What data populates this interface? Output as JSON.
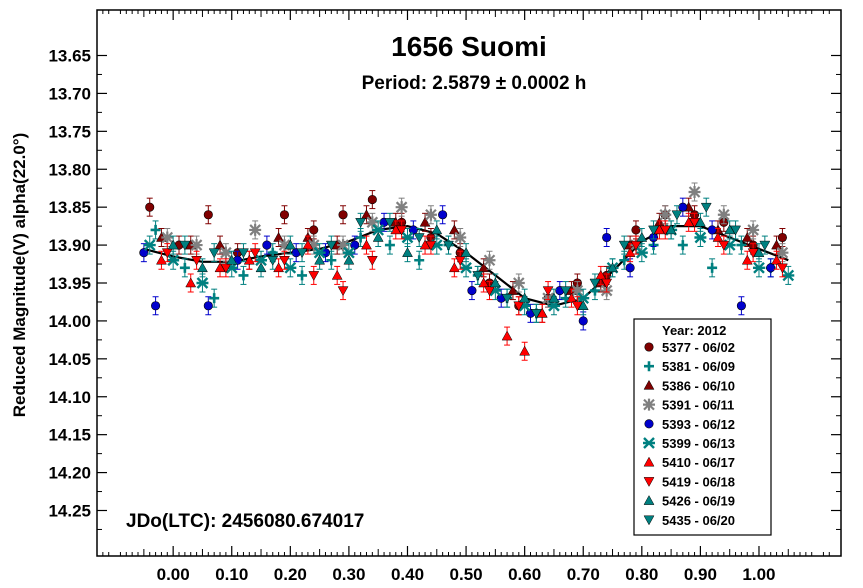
{
  "chart_data": {
    "type": "scatter",
    "title": "1656 Suomi",
    "subtitle": "Period: 2.5879 ± 0.0002 h",
    "xlabel": "",
    "ylabel": "Reduced Magnitude(V) alpha(22.0°)",
    "xlim": [
      -0.13,
      1.14
    ],
    "ylim": [
      14.31,
      13.59
    ],
    "y_inverted": true,
    "x_ticks": [
      0.0,
      0.1,
      0.2,
      0.3,
      0.4,
      0.5,
      0.6,
      0.7,
      0.8,
      0.9,
      1.0
    ],
    "x_tick_labels": [
      "0.00",
      "0.10",
      "0.20",
      "0.30",
      "0.40",
      "0.50",
      "0.60",
      "0.70",
      "0.80",
      "0.90",
      "1.00"
    ],
    "y_ticks": [
      13.65,
      13.7,
      13.75,
      13.8,
      13.85,
      13.9,
      13.95,
      14.0,
      14.05,
      14.1,
      14.15,
      14.2,
      14.25
    ],
    "y_tick_labels": [
      "13.65",
      "13.70",
      "13.75",
      "13.80",
      "13.85",
      "13.90",
      "13.95",
      "14.00",
      "14.05",
      "14.10",
      "14.15",
      "14.20",
      "14.25"
    ],
    "annotation": "JDo(LTC): 2456080.674017",
    "legend_title": "Year: 2012",
    "legend_position": "bottom-right",
    "fit_curve": {
      "x": [
        -0.05,
        0.0,
        0.05,
        0.1,
        0.15,
        0.2,
        0.25,
        0.3,
        0.35,
        0.4,
        0.45,
        0.5,
        0.55,
        0.6,
        0.65,
        0.7,
        0.75,
        0.8,
        0.85,
        0.9,
        0.95,
        1.0,
        1.05
      ],
      "y": [
        13.905,
        13.915,
        13.922,
        13.922,
        13.915,
        13.91,
        13.905,
        13.895,
        13.88,
        13.875,
        13.885,
        13.91,
        13.94,
        13.97,
        13.98,
        13.97,
        13.935,
        13.895,
        13.875,
        13.875,
        13.89,
        13.905,
        13.92
      ]
    },
    "series": [
      {
        "name": "5377 - 06/02",
        "marker": "circle",
        "color": "#800000",
        "x": [
          -0.04,
          0.01,
          0.06,
          0.11,
          0.19,
          0.24,
          0.29,
          0.34,
          0.39,
          0.44,
          0.49,
          0.54,
          0.59,
          0.64,
          0.69,
          0.74,
          0.79,
          0.84,
          0.89,
          0.94,
          0.99,
          1.04
        ],
        "y": [
          13.85,
          13.9,
          13.86,
          13.91,
          13.86,
          13.88,
          13.86,
          13.84,
          13.87,
          13.89,
          13.91,
          13.95,
          13.98,
          13.97,
          13.95,
          13.94,
          13.88,
          13.86,
          13.86,
          13.87,
          13.9,
          13.89
        ]
      },
      {
        "name": "5381 - 06/09",
        "marker": "plus",
        "color": "#008080",
        "x": [
          -0.03,
          0.02,
          0.07,
          0.12,
          0.17,
          0.22,
          0.27,
          0.32,
          0.37,
          0.42,
          0.47,
          0.52,
          0.57,
          0.62,
          0.67,
          0.72,
          0.77,
          0.82,
          0.87,
          0.92,
          0.97,
          1.02
        ],
        "y": [
          13.88,
          13.93,
          13.97,
          13.94,
          13.91,
          13.94,
          13.92,
          13.89,
          13.9,
          13.92,
          13.9,
          13.94,
          13.97,
          13.99,
          13.97,
          13.96,
          13.92,
          13.9,
          13.9,
          13.93,
          13.9,
          13.93
        ]
      },
      {
        "name": "5386 - 06/10",
        "marker": "triangle-up",
        "color": "#800000",
        "x": [
          -0.02,
          0.03,
          0.08,
          0.13,
          0.18,
          0.23,
          0.28,
          0.33,
          0.38,
          0.43,
          0.48,
          0.53,
          0.58,
          0.63,
          0.68,
          0.73,
          0.78,
          0.83,
          0.88,
          0.93,
          0.98,
          1.03
        ],
        "y": [
          13.89,
          13.9,
          13.9,
          13.92,
          13.89,
          13.89,
          13.9,
          13.86,
          13.87,
          13.87,
          13.88,
          13.93,
          13.96,
          13.99,
          13.96,
          13.95,
          13.9,
          13.87,
          13.85,
          13.88,
          13.89,
          13.9
        ]
      },
      {
        "name": "5391 - 06/11",
        "marker": "asterisk",
        "color": "#808080",
        "x": [
          -0.01,
          0.04,
          0.09,
          0.14,
          0.19,
          0.24,
          0.29,
          0.34,
          0.39,
          0.44,
          0.49,
          0.54,
          0.59,
          0.64,
          0.69,
          0.74,
          0.79,
          0.84,
          0.89,
          0.94,
          0.99,
          1.04
        ],
        "y": [
          13.89,
          13.9,
          13.91,
          13.88,
          13.9,
          13.9,
          13.9,
          13.87,
          13.85,
          13.86,
          13.89,
          13.92,
          13.95,
          13.97,
          13.96,
          13.96,
          13.9,
          13.86,
          13.83,
          13.86,
          13.88,
          13.91
        ]
      },
      {
        "name": "5393 - 06/12",
        "marker": "circle",
        "color": "#0000cc",
        "x": [
          -0.05,
          -0.03,
          0.06,
          0.11,
          0.16,
          0.21,
          0.26,
          0.31,
          0.36,
          0.41,
          0.46,
          0.51,
          0.56,
          0.61,
          0.66,
          0.7,
          0.74,
          0.78,
          0.82,
          0.87,
          0.92,
          0.97,
          1.02
        ],
        "y": [
          13.91,
          13.98,
          13.98,
          13.92,
          13.9,
          13.91,
          13.91,
          13.9,
          13.87,
          13.88,
          13.86,
          13.96,
          13.97,
          13.99,
          13.96,
          14.0,
          13.89,
          13.93,
          13.89,
          13.85,
          13.88,
          13.98,
          13.93
        ]
      },
      {
        "name": "5399 - 06/13",
        "marker": "cross",
        "color": "#008080",
        "x": [
          -0.04,
          0.0,
          0.05,
          0.1,
          0.15,
          0.2,
          0.25,
          0.3,
          0.35,
          0.4,
          0.45,
          0.5,
          0.55,
          0.6,
          0.65,
          0.7,
          0.75,
          0.8,
          0.85,
          0.9,
          0.95,
          1.0,
          1.05
        ],
        "y": [
          13.9,
          13.92,
          13.95,
          13.93,
          13.92,
          13.93,
          13.91,
          13.91,
          13.88,
          13.89,
          13.9,
          13.93,
          13.96,
          13.98,
          13.98,
          13.97,
          13.93,
          13.91,
          13.88,
          13.89,
          13.9,
          13.93,
          13.94
        ]
      },
      {
        "name": "5410 - 06/17",
        "marker": "triangle-up",
        "color": "#ff0000",
        "x": [
          -0.02,
          0.03,
          0.08,
          0.13,
          0.18,
          0.23,
          0.28,
          0.33,
          0.38,
          0.43,
          0.48,
          0.53,
          0.57,
          0.6,
          0.63,
          0.68,
          0.73,
          0.78,
          0.83,
          0.88,
          0.93,
          0.98,
          1.03
        ],
        "y": [
          13.92,
          13.95,
          13.93,
          13.92,
          13.93,
          13.9,
          13.94,
          13.9,
          13.88,
          13.9,
          13.93,
          13.95,
          14.02,
          14.04,
          13.99,
          13.97,
          13.94,
          13.91,
          13.88,
          13.87,
          13.89,
          13.92,
          13.92
        ]
      },
      {
        "name": "5419 - 06/18",
        "marker": "triangle-down",
        "color": "#ff0000",
        "x": [
          -0.01,
          0.04,
          0.09,
          0.14,
          0.19,
          0.24,
          0.29,
          0.34,
          0.39,
          0.44,
          0.49,
          0.54,
          0.59,
          0.64,
          0.69,
          0.74,
          0.79,
          0.84,
          0.89,
          0.94,
          0.99,
          1.04
        ],
        "y": [
          13.91,
          13.92,
          13.93,
          13.91,
          13.92,
          13.94,
          13.96,
          13.92,
          13.88,
          13.9,
          13.92,
          13.96,
          13.98,
          13.96,
          13.98,
          13.95,
          13.9,
          13.88,
          13.87,
          13.9,
          13.91,
          13.93
        ]
      },
      {
        "name": "5426 - 06/19",
        "marker": "triangle-up",
        "color": "#008080",
        "x": [
          0.0,
          0.05,
          0.1,
          0.15,
          0.2,
          0.25,
          0.3,
          0.35,
          0.4,
          0.45,
          0.5,
          0.55,
          0.6,
          0.65,
          0.7,
          0.75,
          0.8,
          0.85,
          0.9,
          0.95,
          1.0
        ],
        "y": [
          13.9,
          13.93,
          13.92,
          13.93,
          13.9,
          13.92,
          13.92,
          13.89,
          13.91,
          13.88,
          13.91,
          13.95,
          13.97,
          13.97,
          13.98,
          13.93,
          13.89,
          13.88,
          13.87,
          13.88,
          13.91
        ]
      },
      {
        "name": "5435 - 06/20",
        "marker": "triangle-down",
        "color": "#008080",
        "x": [
          0.02,
          0.07,
          0.12,
          0.17,
          0.22,
          0.27,
          0.32,
          0.37,
          0.42,
          0.47,
          0.52,
          0.57,
          0.62,
          0.67,
          0.72,
          0.77,
          0.82,
          0.86,
          0.91,
          0.96,
          1.01
        ],
        "y": [
          13.9,
          13.91,
          13.91,
          13.92,
          13.91,
          13.9,
          13.87,
          13.87,
          13.89,
          13.9,
          13.94,
          13.97,
          13.99,
          13.96,
          13.95,
          13.9,
          13.88,
          13.86,
          13.85,
          13.88,
          13.9
        ]
      }
    ]
  }
}
